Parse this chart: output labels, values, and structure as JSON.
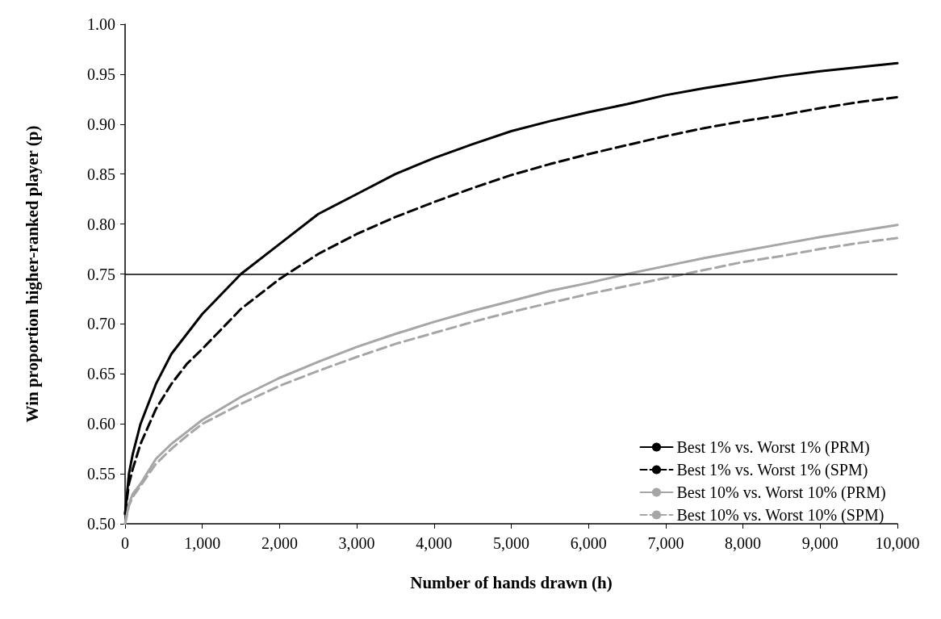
{
  "chart_data": {
    "type": "line",
    "xlabel": "Number of hands drawn (h)",
    "ylabel": "Win proportion higher-ranked player (p)",
    "x": [
      0,
      50,
      100,
      200,
      400,
      600,
      800,
      1000,
      1500,
      2000,
      2500,
      3000,
      3500,
      4000,
      4500,
      5000,
      5500,
      6000,
      6500,
      7000,
      7500,
      8000,
      8500,
      9000,
      9500,
      10000
    ],
    "series": [
      {
        "name": "Best 1% vs. Worst 1% (PRM)",
        "color": "#000000",
        "line_style": "solid",
        "values": [
          0.51,
          0.55,
          0.57,
          0.6,
          0.64,
          0.67,
          0.69,
          0.71,
          0.75,
          0.78,
          0.81,
          0.83,
          0.85,
          0.866,
          0.88,
          0.893,
          0.903,
          0.912,
          0.92,
          0.929,
          0.936,
          0.942,
          0.948,
          0.953,
          0.957,
          0.961
        ]
      },
      {
        "name": "Best 1% vs. Worst 1% (SPM)",
        "color": "#000000",
        "line_style": "dashed",
        "values": [
          0.51,
          0.54,
          0.555,
          0.58,
          0.615,
          0.64,
          0.66,
          0.675,
          0.715,
          0.745,
          0.77,
          0.79,
          0.807,
          0.822,
          0.836,
          0.849,
          0.86,
          0.87,
          0.879,
          0.888,
          0.896,
          0.903,
          0.909,
          0.916,
          0.922,
          0.927
        ]
      },
      {
        "name": "Best 10% vs. Worst 10% (PRM)",
        "color": "#a6a6a6",
        "line_style": "solid",
        "values": [
          0.5,
          0.52,
          0.53,
          0.54,
          0.565,
          0.58,
          0.592,
          0.604,
          0.627,
          0.646,
          0.662,
          0.677,
          0.69,
          0.702,
          0.713,
          0.723,
          0.733,
          0.741,
          0.75,
          0.758,
          0.766,
          0.773,
          0.78,
          0.787,
          0.793,
          0.799
        ]
      },
      {
        "name": "Best 10% vs. Worst 10% (SPM)",
        "color": "#a6a6a6",
        "line_style": "dashed",
        "values": [
          0.5,
          0.518,
          0.527,
          0.538,
          0.56,
          0.575,
          0.588,
          0.6,
          0.62,
          0.638,
          0.653,
          0.667,
          0.68,
          0.691,
          0.702,
          0.712,
          0.721,
          0.73,
          0.738,
          0.746,
          0.754,
          0.762,
          0.768,
          0.775,
          0.781,
          0.786
        ]
      }
    ],
    "xlim": [
      0,
      10000
    ],
    "xticks": [
      0,
      {
        "value": 1000,
        "label": "1,000"
      },
      {
        "value": 2000,
        "label": "2,000"
      },
      {
        "value": 3000,
        "label": "3,000"
      },
      {
        "value": 4000,
        "label": "4,000"
      },
      {
        "value": 5000,
        "label": "5,000"
      },
      {
        "value": 6000,
        "label": "6,000"
      },
      {
        "value": 7000,
        "label": "7,000"
      },
      {
        "value": 8000,
        "label": "8,000"
      },
      {
        "value": 9000,
        "label": "9,000"
      },
      {
        "value": 10000,
        "label": "10,000"
      }
    ],
    "ylim": [
      0.5,
      1.0
    ],
    "yticks": [
      {
        "value": 0.5,
        "label": "0.50"
      },
      {
        "value": 0.55,
        "label": "0.55"
      },
      {
        "value": 0.6,
        "label": "0.60"
      },
      {
        "value": 0.65,
        "label": "0.65"
      },
      {
        "value": 0.7,
        "label": "0.70"
      },
      {
        "value": 0.75,
        "label": "0.75"
      },
      {
        "value": 0.8,
        "label": "0.80"
      },
      {
        "value": 0.85,
        "label": "0.85"
      },
      {
        "value": 0.9,
        "label": "0.90"
      },
      {
        "value": 0.95,
        "label": "0.95"
      },
      {
        "value": 1.0,
        "label": "1.00"
      }
    ],
    "ref_lines": [
      {
        "axis": "y",
        "value": 0.75,
        "color": "#000000",
        "line_style": "solid"
      }
    ],
    "grid": false,
    "legend": "bottom right",
    "marker": "none"
  }
}
